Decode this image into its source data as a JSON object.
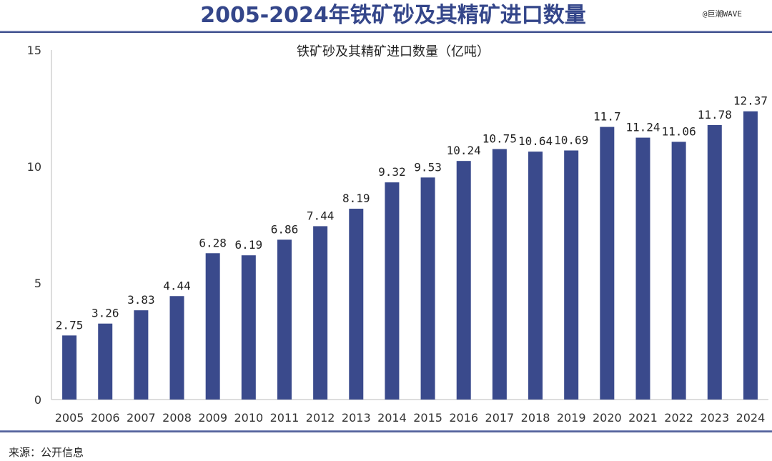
{
  "header": {
    "title": "2005-2024年铁矿砂及其精矿进口数量",
    "watermark": "@巨潮WAVE"
  },
  "footer": {
    "source": "来源：公开信息"
  },
  "chart_data": {
    "type": "bar",
    "title": "铁矿砂及其精矿进口数量（亿吨）",
    "categories": [
      "2005",
      "2006",
      "2007",
      "2008",
      "2009",
      "2010",
      "2011",
      "2012",
      "2013",
      "2014",
      "2015",
      "2016",
      "2017",
      "2018",
      "2019",
      "2020",
      "2021",
      "2022",
      "2023",
      "2024"
    ],
    "values": [
      2.75,
      3.26,
      3.83,
      4.44,
      6.28,
      6.19,
      6.86,
      7.44,
      8.19,
      9.32,
      9.53,
      10.24,
      10.75,
      10.64,
      10.69,
      11.7,
      11.24,
      11.06,
      11.78,
      12.37
    ],
    "ylim": [
      0,
      15
    ],
    "yticks": [
      0,
      5,
      10,
      15
    ],
    "grid": false,
    "bar_color": "#3a4a8c",
    "xlabel": "",
    "ylabel": ""
  }
}
